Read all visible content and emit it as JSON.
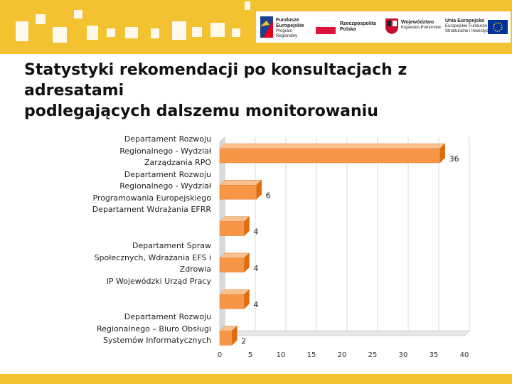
{
  "title_line1": "Statystyki rekomendacji po konsultacjach z adresatami",
  "title_line2": "podlegających dalszemu monitorowaniu",
  "logos": {
    "fe_line1": "Fundusze",
    "fe_line2": "Europejskie",
    "fe_line3": "Program Regionalny",
    "rp_line1": "Rzeczpospolita",
    "rp_line2": "Polska",
    "woj_line1": "Województwo",
    "woj_line2": "Kujawsko-Pomorskie",
    "ue_line1": "Unia Europejska",
    "ue_line2": "Europejskie Fundusze",
    "ue_line3": "Strukturalne i Inwestycyjne"
  },
  "colors": {
    "banner": "#f2c230",
    "bar_front": "#f79646",
    "bar_top": "#fac08f",
    "bar_side": "#e36c09",
    "wall": "#d9d9d9"
  },
  "chart_data": {
    "type": "bar",
    "orientation": "horizontal",
    "style": "3d",
    "categories": [
      "Departament Rozwoju Regionalnego - Wydział Zarządzania RPO",
      "Departament Rozwoju Regionalnego - Wydział Programowania Europejskiego",
      "Departament Wdrażania EFRR",
      "Departament Spraw Społecznych, Wdrażania EFS i Zdrowia",
      "IP Wojewódzki Urząd Pracy",
      "Departament Rozwoju Regionalnego – Biuro Obsługi Systemów Informatycznych"
    ],
    "label_groups": [
      [
        "Departament Rozwoju",
        "Regionalnego - Wydział",
        "Zarządzania RPO",
        "Departament Rozwoju",
        "Regionalnego - Wydział",
        "Programowania Europejskiego",
        "Departament Wdrażania  EFRR"
      ],
      [
        "Departament Spraw",
        "Społecznych, Wdrażania EFS i",
        "Zdrowia",
        "IP Wojewódzki Urząd Pracy"
      ],
      [
        "Departament Rozwoju",
        "Regionalnego – Biuro Obsługi",
        "Systemów Informatycznych"
      ]
    ],
    "values": [
      36,
      6,
      4,
      4,
      4,
      2
    ],
    "data_labels": [
      "36",
      "6",
      "4",
      "4",
      "4",
      "2"
    ],
    "xlim": [
      0,
      40
    ],
    "xticks": [
      "0",
      "5",
      "10",
      "15",
      "20",
      "25",
      "30",
      "35",
      "40"
    ],
    "grid": true,
    "legend": "none"
  }
}
